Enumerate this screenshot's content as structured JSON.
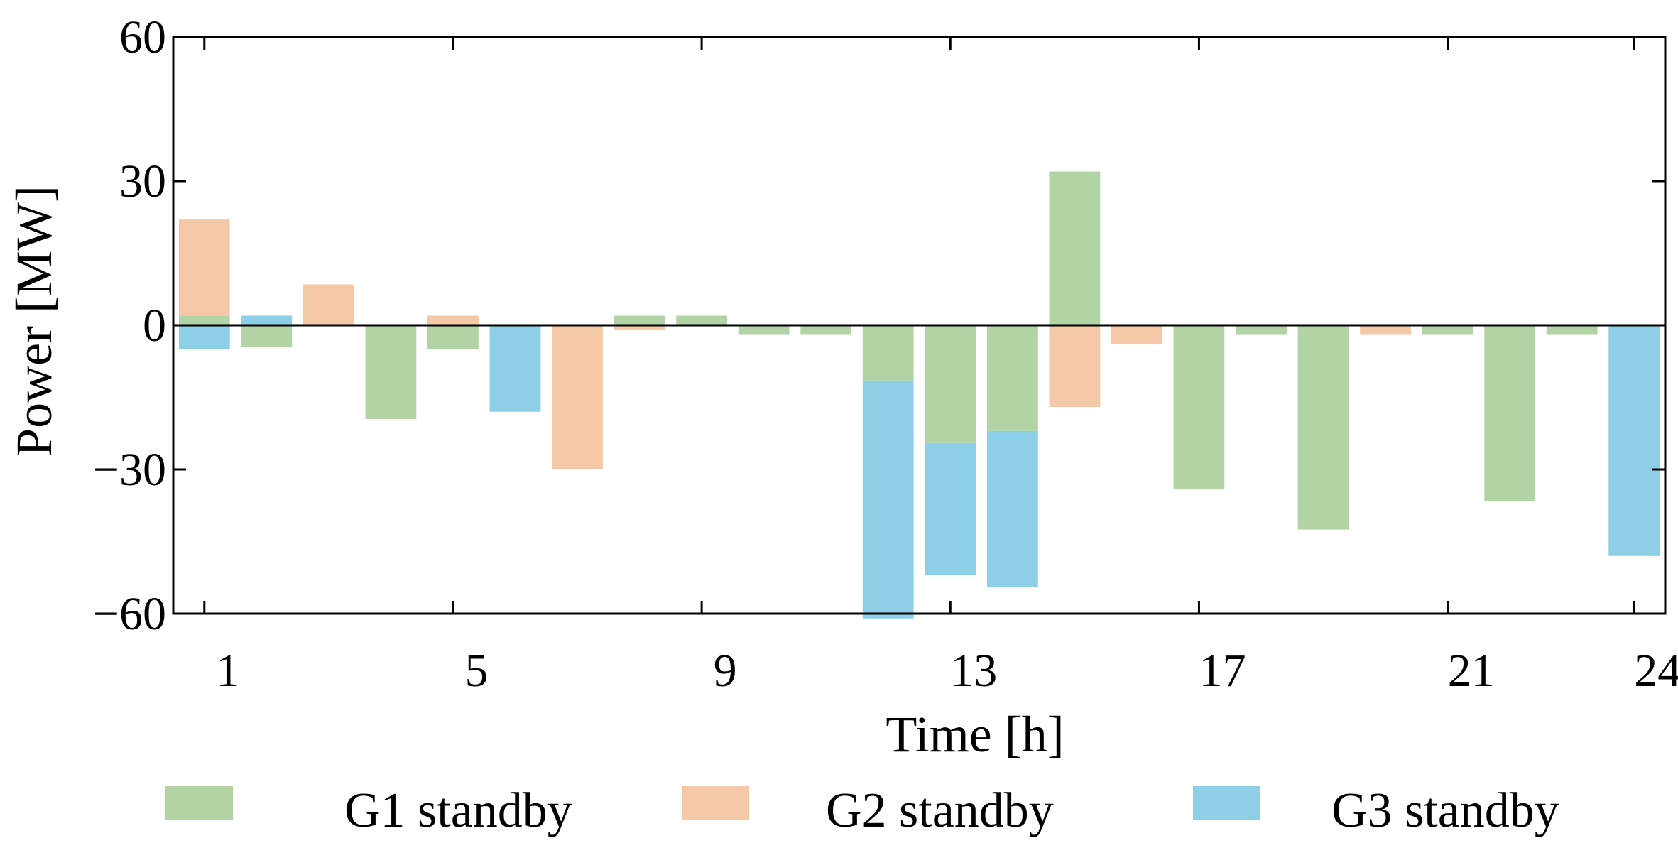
{
  "chart_data": {
    "type": "bar",
    "stacked": true,
    "xlabel": "Time [h]",
    "ylabel": "Power [MW]",
    "ylim": [
      -60,
      60
    ],
    "yticks": [
      60,
      30,
      0,
      -30,
      -60
    ],
    "yticklabels": [
      "60",
      "30",
      "0",
      "−30",
      "−60"
    ],
    "x": [
      1,
      2,
      3,
      4,
      5,
      6,
      7,
      8,
      9,
      10,
      11,
      12,
      13,
      14,
      15,
      16,
      17,
      18,
      19,
      20,
      21,
      22,
      23,
      24
    ],
    "xticks": [
      1,
      5,
      9,
      13,
      17,
      21,
      24
    ],
    "xticklabels": [
      "1",
      "5",
      "9",
      "13",
      "17",
      "21",
      "24"
    ],
    "legend_position": "bottom",
    "series": [
      {
        "name": "G1 standby",
        "color": "#b2d4a4",
        "values": [
          2,
          -4.5,
          0,
          -19.5,
          -5,
          0,
          0,
          2,
          2,
          -2,
          -2,
          -11.5,
          -24.5,
          -22,
          32,
          0,
          -34,
          -2,
          -42.5,
          0,
          -2,
          -36.5,
          -2,
          0
        ]
      },
      {
        "name": "G2 standby",
        "color": "#f5c9a8",
        "values": [
          20,
          0,
          8.5,
          0,
          2,
          0,
          -30,
          -1,
          0,
          0,
          0,
          0,
          0,
          0,
          -17,
          -4,
          0,
          0,
          0,
          -2,
          0,
          0,
          0,
          0
        ]
      },
      {
        "name": "G3 standby",
        "color": "#8dcfe6",
        "values": [
          -5,
          2,
          0,
          0,
          0,
          -18,
          0,
          0,
          0,
          0,
          0,
          -49.5,
          -27.5,
          -32.5,
          0,
          0,
          0,
          0,
          0,
          0,
          0,
          0,
          0,
          -48
        ]
      }
    ]
  }
}
